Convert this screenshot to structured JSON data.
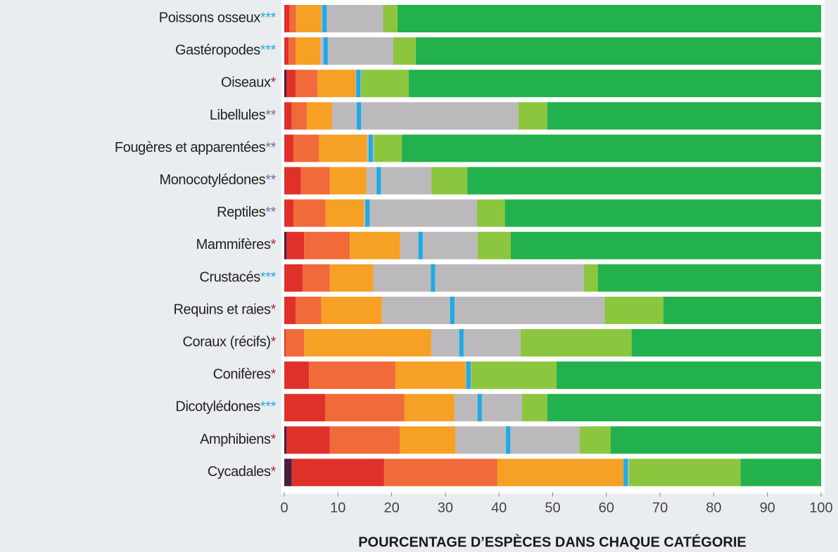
{
  "chart_data": {
    "type": "stacked-barh",
    "x_label": "POURCENTAGE D’ESPÈCES DANS CHAQUE CATÉGORIE",
    "categories": [
      "Poissons osseux",
      "Gastéropodes",
      "Oiseaux",
      "Libellules",
      "Fougères et apparentées",
      "Monocotylédones",
      "Reptiles",
      "Mammifères",
      "Crustacés",
      "Requins et raies",
      "Coraux (récifs)",
      "Conifères",
      "Dicotylédones",
      "Amphibiens",
      "Cycadales"
    ],
    "stars": [
      "***",
      "***",
      "*",
      "**",
      "**",
      "**",
      "**",
      "*",
      "***",
      "*",
      "*",
      "*",
      "***",
      "*",
      "*"
    ],
    "star_colors": {
      "***": "#2fa6e0",
      "**": "#8a62b0",
      "*": "#b3263a"
    },
    "series": [
      {
        "color": "#4b1d3f",
        "values": [
          0,
          0,
          0.4,
          0,
          0,
          0,
          0,
          0.4,
          0,
          0,
          0,
          0,
          0,
          0.4,
          1.4
        ]
      },
      {
        "color": "#e0302a",
        "values": [
          1,
          0.8,
          1.7,
          1.4,
          1.7,
          3.1,
          1.7,
          3.3,
          3.4,
          2.1,
          0.3,
          4.6,
          7.6,
          8.1,
          17.2
        ]
      },
      {
        "color": "#f06a3a",
        "values": [
          1.2,
          1.3,
          4.1,
          2.8,
          4.8,
          5.4,
          6.0,
          8.5,
          5.1,
          4.8,
          3.4,
          16.1,
          14.8,
          13.0,
          21.1
        ]
      },
      {
        "color": "#f6a125",
        "values": [
          4.7,
          4.6,
          7.1,
          4.7,
          8.9,
          6.8,
          7.2,
          9.4,
          8.1,
          11.3,
          23.7,
          13.1,
          9.3,
          10.4,
          23.5
        ]
      },
      {
        "color": "#bcb9bd",
        "values": [
          11.5,
          13.6,
          1.0,
          34.7,
          1.3,
          12.1,
          21.0,
          14.4,
          39.2,
          41.5,
          16.6,
          1.0,
          12.6,
          23.1,
          1.0
        ]
      },
      {
        "color": "#8cc63f",
        "values": [
          2.7,
          4.2,
          8.9,
          5.4,
          5.2,
          6.7,
          5.2,
          6.2,
          2.6,
          10.9,
          20.7,
          15.9,
          4.7,
          5.8,
          20.8
        ]
      },
      {
        "color": "#22b14c",
        "values": [
          78.9,
          75.5,
          76.8,
          51.0,
          78.1,
          65.9,
          58.9,
          57.8,
          41.6,
          29.4,
          35.3,
          49.3,
          51.0,
          39.2,
          15.0
        ]
      }
    ],
    "best_estimate": {
      "color": "#1cabe8",
      "values": [
        7.5,
        7.7,
        13.8,
        13.9,
        16.1,
        17.6,
        15.5,
        25.4,
        27.7,
        31.3,
        33.0,
        34.3,
        36.4,
        41.7,
        63.6
      ]
    },
    "xlim": [
      0,
      100
    ],
    "xticks": [
      0,
      10,
      20,
      30,
      40,
      50,
      60,
      70,
      80,
      90,
      100
    ]
  }
}
